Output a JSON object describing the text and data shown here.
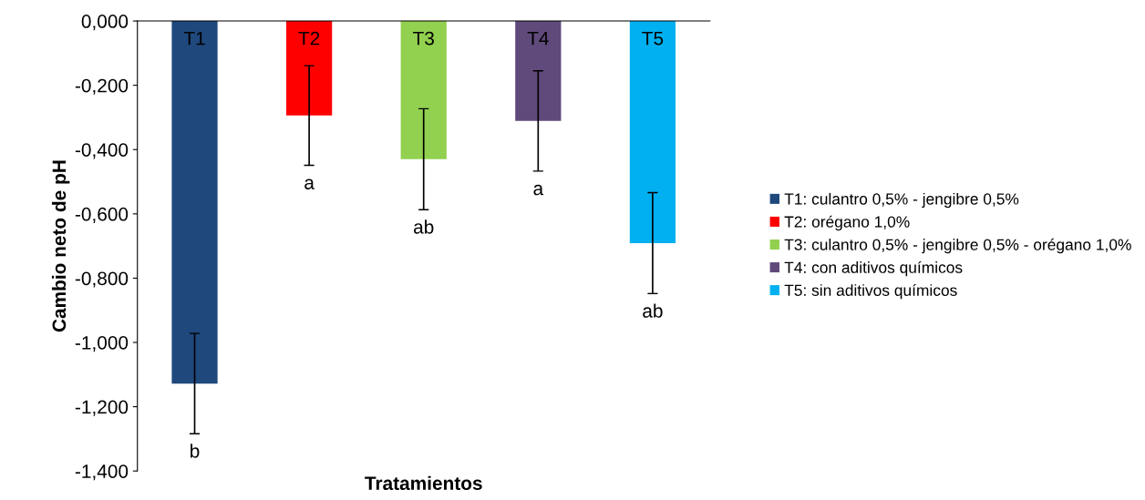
{
  "chart_data": {
    "type": "bar",
    "xlabel": "Tratamientos",
    "ylabel": "Cambio neto de pH",
    "categories": [
      "T1",
      "T2",
      "T3",
      "T4",
      "T5"
    ],
    "series": [
      {
        "name": "T1: culantro 0,5% - jengibre 0,5%",
        "color": "#1f497d",
        "values": [
          -1.128,
          null,
          null,
          null,
          null
        ],
        "errors": [
          0.156,
          null,
          null,
          null,
          null
        ]
      },
      {
        "name": "T2: orégano 1,0%",
        "color": "#ff0000",
        "values": [
          null,
          -0.294,
          null,
          null,
          null
        ],
        "errors": [
          null,
          0.155,
          null,
          null,
          null
        ]
      },
      {
        "name": "T3: culantro 0,5% - jengibre 0,5% - orégano 1,0%",
        "color": "#92d050",
        "values": [
          null,
          null,
          -0.43,
          null,
          null
        ],
        "errors": [
          null,
          null,
          0.157,
          null,
          null
        ]
      },
      {
        "name": "T4: con aditivos químicos",
        "color": "#604a7b",
        "values": [
          null,
          null,
          null,
          -0.311,
          null
        ],
        "errors": [
          null,
          null,
          null,
          0.156,
          null
        ]
      },
      {
        "name": "T5: sin aditivos químicos",
        "color": "#00b0f0",
        "values": [
          null,
          null,
          null,
          null,
          -0.691
        ],
        "errors": [
          null,
          null,
          null,
          null,
          0.157
        ]
      }
    ],
    "ylim": [
      -1.4,
      0
    ],
    "yticks": [
      {
        "value": 0,
        "label": "0,000"
      },
      {
        "value": -0.2,
        "label": "-0,200"
      },
      {
        "value": -0.4,
        "label": "-0,400"
      },
      {
        "value": -0.6,
        "label": "-0,600"
      },
      {
        "value": -0.8,
        "label": "-0,800"
      },
      {
        "value": -1.0,
        "label": "-1,000"
      },
      {
        "value": -1.2,
        "label": "-1,200"
      },
      {
        "value": -1.4,
        "label": "-1,400"
      }
    ],
    "annotations": [
      "b",
      "a",
      "ab",
      "a",
      "ab"
    ],
    "grid": false,
    "legend": "right"
  }
}
